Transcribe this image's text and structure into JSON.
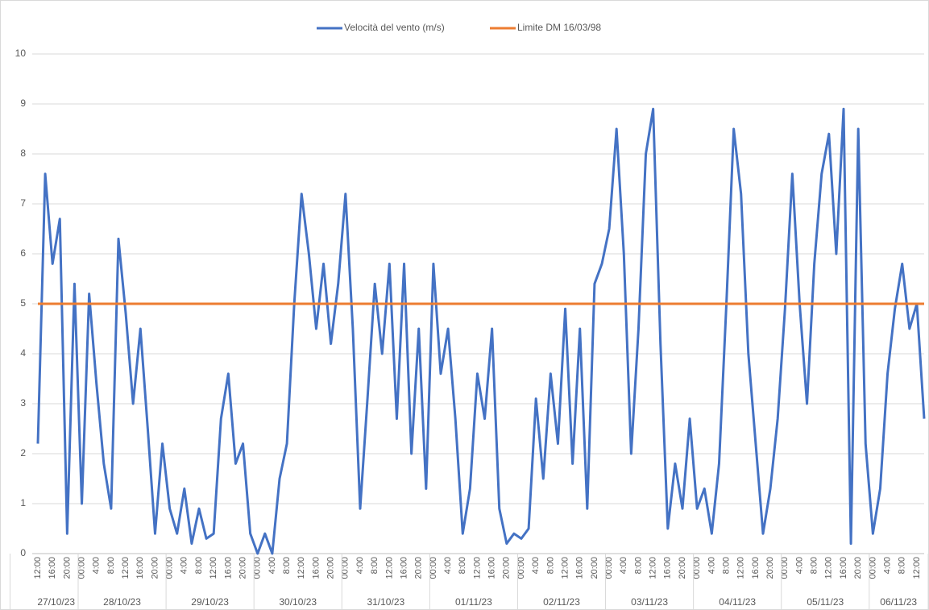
{
  "chart_data": {
    "type": "line",
    "categories": [
      "12:00",
      null,
      "16:00",
      null,
      "20:00",
      null,
      "00:00",
      null,
      "4:00",
      null,
      "8:00",
      null,
      "12:00",
      null,
      "16:00",
      null,
      "20:00",
      null,
      "00:00",
      null,
      "4:00",
      null,
      "8:00",
      null,
      "12:00",
      null,
      "16:00",
      null,
      "20:00",
      null,
      "00:00",
      null,
      "4:00",
      null,
      "8:00",
      null,
      "12:00",
      null,
      "16:00",
      null,
      "20:00",
      null,
      "00:00",
      null,
      "4:00",
      null,
      "8:00",
      null,
      "12:00",
      null,
      "16:00",
      null,
      "20:00",
      null,
      "00:00",
      null,
      "4:00",
      null,
      "8:00",
      null,
      "12:00",
      null,
      "16:00",
      null,
      "20:00",
      null,
      "00:00",
      null,
      "4:00",
      null,
      "8:00",
      null,
      "12:00",
      null,
      "16:00",
      null,
      "20:00",
      null,
      "00:00",
      null,
      "4:00",
      null,
      "8:00",
      null,
      "12:00",
      null,
      "16:00",
      null,
      "20:00",
      null,
      "00:00",
      null,
      "4:00",
      null,
      "8:00",
      null,
      "12:00",
      null,
      "16:00",
      null,
      "20:00",
      null,
      "00:00",
      null,
      "4:00",
      null,
      "8:00",
      null,
      "12:00",
      null,
      "16:00",
      null,
      "20:00",
      null,
      "00:00",
      null,
      "4:00",
      null,
      "8:00",
      null,
      "12:00",
      null
    ],
    "groups": [
      {
        "label": "27/10/23",
        "count": 6
      },
      {
        "label": "28/10/23",
        "count": 12
      },
      {
        "label": "29/10/23",
        "count": 12
      },
      {
        "label": "30/10/23",
        "count": 12
      },
      {
        "label": "31/10/23",
        "count": 12
      },
      {
        "label": "01/11/23",
        "count": 12
      },
      {
        "label": "02/11/23",
        "count": 12
      },
      {
        "label": "03/11/23",
        "count": 12
      },
      {
        "label": "04/11/23",
        "count": 12
      },
      {
        "label": "05/11/23",
        "count": 12
      },
      {
        "label": "06/11/23",
        "count": 8
      }
    ],
    "series": [
      {
        "name": "Velocità del vento (m/s)",
        "color": "#4472c4",
        "values": [
          2.2,
          7.6,
          5.8,
          6.7,
          0.4,
          5.4,
          1.0,
          5.2,
          3.4,
          1.8,
          0.9,
          6.3,
          4.8,
          3.0,
          4.5,
          2.5,
          0.4,
          2.2,
          0.9,
          0.4,
          1.3,
          0.2,
          0.9,
          0.3,
          0.4,
          2.7,
          3.6,
          1.8,
          2.2,
          0.4,
          0,
          0.4,
          0,
          1.5,
          2.2,
          5.0,
          7.2,
          6.0,
          4.5,
          5.8,
          4.2,
          5.4,
          7.2,
          4.5,
          0.9,
          3.1,
          5.4,
          4.0,
          5.8,
          2.7,
          5.8,
          2.0,
          4.5,
          1.3,
          5.8,
          3.6,
          4.5,
          2.7,
          0.4,
          1.3,
          3.6,
          2.7,
          4.5,
          0.9,
          0.2,
          0.4,
          0.3,
          0.5,
          3.1,
          1.5,
          3.6,
          2.2,
          4.9,
          1.8,
          4.5,
          0.9,
          5.4,
          5.8,
          6.5,
          8.5,
          6.0,
          2.0,
          4.5,
          8.0,
          8.9,
          4.2,
          0.5,
          1.8,
          0.9,
          2.7,
          0.9,
          1.3,
          0.4,
          1.8,
          5.0,
          8.5,
          7.2,
          4.0,
          2.2,
          0.4,
          1.3,
          2.7,
          4.9,
          7.6,
          5.0,
          3.0,
          5.8,
          7.6,
          8.4,
          6.0,
          8.9,
          0.2,
          8.5,
          2.2,
          0.4,
          1.3,
          3.6,
          4.9,
          5.8,
          4.5,
          5.0,
          2.7
        ]
      },
      {
        "name": "Limite DM 16/03/98",
        "color": "#ed7d31",
        "values": [
          5,
          5,
          5,
          5,
          5,
          5,
          5,
          5,
          5,
          5,
          5,
          5,
          5,
          5,
          5,
          5,
          5,
          5,
          5,
          5,
          5,
          5,
          5,
          5,
          5,
          5,
          5,
          5,
          5,
          5,
          5,
          5,
          5,
          5,
          5,
          5,
          5,
          5,
          5,
          5,
          5,
          5,
          5,
          5,
          5,
          5,
          5,
          5,
          5,
          5,
          5,
          5,
          5,
          5,
          5,
          5,
          5,
          5,
          5,
          5,
          5,
          5,
          5,
          5,
          5,
          5,
          5,
          5,
          5,
          5,
          5,
          5,
          5,
          5,
          5,
          5,
          5,
          5,
          5,
          5,
          5,
          5,
          5,
          5,
          5,
          5,
          5,
          5,
          5,
          5,
          5,
          5,
          5,
          5,
          5,
          5,
          5,
          5,
          5,
          5,
          5,
          5,
          5,
          5,
          5,
          5,
          5,
          5,
          5,
          5,
          5,
          5,
          5,
          5,
          5,
          5,
          5,
          5,
          5,
          5,
          5,
          5
        ]
      }
    ],
    "ylim": [
      0,
      10
    ],
    "yticks": [
      0,
      1,
      2,
      3,
      4,
      5,
      6,
      7,
      8,
      9,
      10
    ],
    "grid": true,
    "legend": "top"
  }
}
